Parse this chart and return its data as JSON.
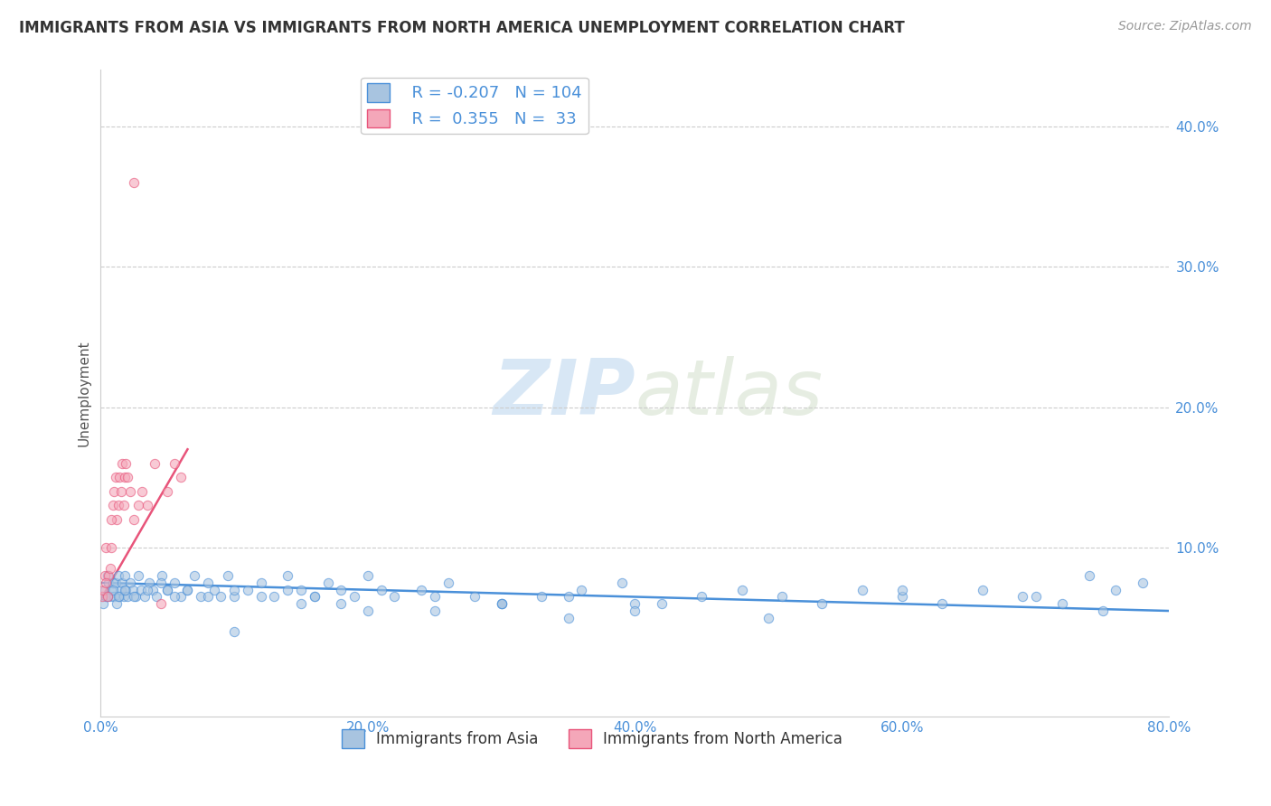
{
  "title": "IMMIGRANTS FROM ASIA VS IMMIGRANTS FROM NORTH AMERICA UNEMPLOYMENT CORRELATION CHART",
  "source": "Source: ZipAtlas.com",
  "ylabel": "Unemployment",
  "xlim": [
    0,
    0.8
  ],
  "ylim": [
    -0.02,
    0.44
  ],
  "yticks": [
    0.0,
    0.1,
    0.2,
    0.3,
    0.4
  ],
  "ytick_labels": [
    "",
    "10.0%",
    "20.0%",
    "30.0%",
    "40.0%"
  ],
  "xticks": [
    0.0,
    0.2,
    0.4,
    0.6,
    0.8
  ],
  "xtick_labels": [
    "0.0%",
    "20.0%",
    "40.0%",
    "60.0%",
    "80.0%"
  ],
  "legend_r1": "R = -0.207",
  "legend_n1": "N = 104",
  "legend_r2": "R =  0.355",
  "legend_n2": "N =  33",
  "color_asia": "#a8c4e0",
  "color_na": "#f4a7b9",
  "line_color_asia": "#4a90d9",
  "line_color_na": "#e8547a",
  "watermark_zip": "ZIP",
  "watermark_atlas": "atlas",
  "background_color": "#ffffff",
  "grid_color": "#cccccc",
  "title_color": "#333333",
  "axis_label_color": "#555555",
  "tick_color": "#4a90d9",
  "asia_scatter_x": [
    0.002,
    0.003,
    0.004,
    0.005,
    0.006,
    0.007,
    0.008,
    0.009,
    0.01,
    0.011,
    0.012,
    0.013,
    0.014,
    0.015,
    0.016,
    0.017,
    0.018,
    0.019,
    0.02,
    0.022,
    0.024,
    0.026,
    0.028,
    0.03,
    0.033,
    0.036,
    0.039,
    0.042,
    0.046,
    0.05,
    0.055,
    0.06,
    0.065,
    0.07,
    0.075,
    0.08,
    0.085,
    0.09,
    0.095,
    0.1,
    0.11,
    0.12,
    0.13,
    0.14,
    0.15,
    0.16,
    0.17,
    0.18,
    0.19,
    0.2,
    0.22,
    0.24,
    0.26,
    0.28,
    0.3,
    0.33,
    0.36,
    0.39,
    0.42,
    0.45,
    0.48,
    0.51,
    0.54,
    0.57,
    0.6,
    0.63,
    0.66,
    0.69,
    0.72,
    0.74,
    0.76,
    0.78,
    0.005,
    0.009,
    0.013,
    0.018,
    0.025,
    0.035,
    0.045,
    0.055,
    0.065,
    0.08,
    0.1,
    0.12,
    0.14,
    0.16,
    0.18,
    0.21,
    0.25,
    0.3,
    0.35,
    0.4,
    0.5,
    0.6,
    0.7,
    0.75,
    0.1,
    0.2,
    0.3,
    0.4,
    0.05,
    0.15,
    0.25,
    0.35
  ],
  "asia_scatter_y": [
    0.06,
    0.07,
    0.065,
    0.08,
    0.075,
    0.065,
    0.07,
    0.075,
    0.065,
    0.075,
    0.06,
    0.08,
    0.065,
    0.07,
    0.075,
    0.065,
    0.08,
    0.07,
    0.065,
    0.075,
    0.07,
    0.065,
    0.08,
    0.07,
    0.065,
    0.075,
    0.07,
    0.065,
    0.08,
    0.07,
    0.075,
    0.065,
    0.07,
    0.08,
    0.065,
    0.075,
    0.07,
    0.065,
    0.08,
    0.065,
    0.07,
    0.075,
    0.065,
    0.08,
    0.07,
    0.065,
    0.075,
    0.07,
    0.065,
    0.08,
    0.065,
    0.07,
    0.075,
    0.065,
    0.06,
    0.065,
    0.07,
    0.075,
    0.06,
    0.065,
    0.07,
    0.065,
    0.06,
    0.07,
    0.065,
    0.06,
    0.07,
    0.065,
    0.06,
    0.08,
    0.07,
    0.075,
    0.065,
    0.07,
    0.065,
    0.07,
    0.065,
    0.07,
    0.075,
    0.065,
    0.07,
    0.065,
    0.07,
    0.065,
    0.07,
    0.065,
    0.06,
    0.07,
    0.065,
    0.06,
    0.065,
    0.06,
    0.05,
    0.07,
    0.065,
    0.055,
    0.04,
    0.055,
    0.06,
    0.055,
    0.07,
    0.06,
    0.055,
    0.05
  ],
  "na_scatter_x": [
    0.001,
    0.002,
    0.003,
    0.004,
    0.005,
    0.006,
    0.007,
    0.008,
    0.009,
    0.01,
    0.011,
    0.012,
    0.013,
    0.014,
    0.015,
    0.016,
    0.017,
    0.018,
    0.019,
    0.02,
    0.022,
    0.025,
    0.028,
    0.031,
    0.035,
    0.04,
    0.045,
    0.05,
    0.055,
    0.06,
    0.004,
    0.008,
    0.025
  ],
  "na_scatter_y": [
    0.065,
    0.07,
    0.08,
    0.1,
    0.065,
    0.08,
    0.085,
    0.1,
    0.13,
    0.14,
    0.15,
    0.12,
    0.13,
    0.15,
    0.14,
    0.16,
    0.13,
    0.15,
    0.16,
    0.15,
    0.14,
    0.12,
    0.13,
    0.14,
    0.13,
    0.16,
    0.06,
    0.14,
    0.16,
    0.15,
    0.075,
    0.12,
    0.36
  ],
  "asia_trend_x": [
    0.0,
    0.8
  ],
  "asia_trend_y": [
    0.075,
    0.055
  ],
  "na_trend_x": [
    0.0,
    0.065
  ],
  "na_trend_y": [
    0.063,
    0.17
  ],
  "figsize": [
    14.06,
    8.92
  ],
  "dpi": 100
}
